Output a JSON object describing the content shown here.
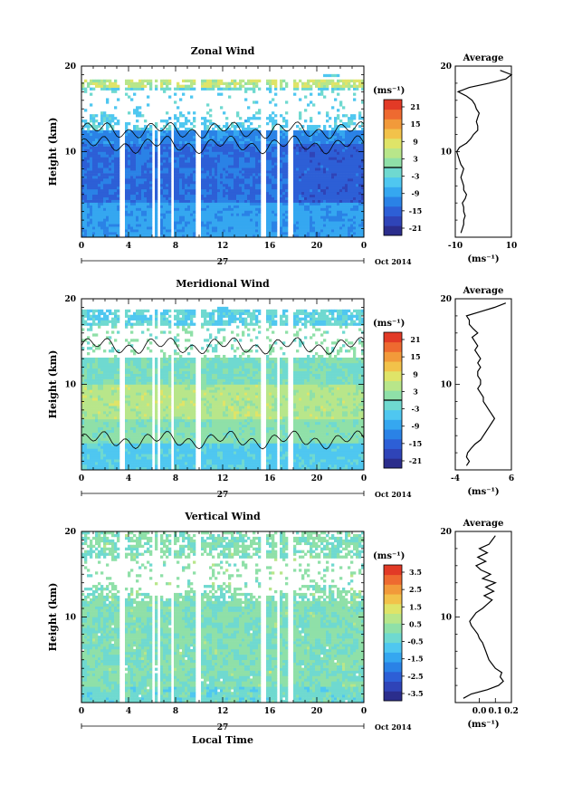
{
  "chart_data": [
    {
      "type": "heatmap",
      "title": "Zonal Wind",
      "ylabel": "Height (km)",
      "unit": "(ms⁻¹)",
      "xlim": [
        0,
        24
      ],
      "ylim": [
        0,
        20
      ],
      "xticks": [
        "0",
        "4",
        "8",
        "12",
        "16",
        "20",
        "0"
      ],
      "yticks": [
        "10",
        "20"
      ],
      "date_day": "27",
      "month_label": "Oct 2014",
      "colorbar_ticks": [
        "21",
        "15",
        "9",
        "3",
        "-3",
        "-9",
        "-15",
        "-21"
      ],
      "colorbar_range": [
        -24,
        24
      ],
      "colorbar_contour": 0,
      "profile_title": "Average",
      "profile_xlim": [
        -10,
        10
      ],
      "profile_xticks": [
        "-10",
        "10"
      ],
      "profile_yticks": [
        "10",
        "20"
      ],
      "profile_xlabel": "(ms⁻¹)",
      "profile_heights": [
        0.5,
        1,
        1.5,
        2,
        2.5,
        3,
        3.5,
        4,
        4.5,
        5,
        5.5,
        6,
        6.5,
        7,
        7.5,
        8,
        8.5,
        9,
        9.5,
        10,
        10.5,
        11,
        11.5,
        12,
        12.5,
        13,
        13.5,
        14,
        14.5,
        15,
        15.5,
        16,
        16.5,
        17,
        17.5,
        18,
        18.5,
        19,
        19.5
      ],
      "profile_values": [
        -8,
        -7.5,
        -7,
        -7,
        -6.5,
        -7,
        -7,
        -7.5,
        -6.5,
        -6,
        -7,
        -7,
        -7.5,
        -8,
        -7.5,
        -7,
        -8,
        -8.5,
        -9,
        -9.5,
        -8.5,
        -6,
        -4.5,
        -3.5,
        -2,
        -2,
        -2.5,
        -2,
        -1.5,
        -2.5,
        -3,
        -4,
        -6,
        -9,
        -5,
        2,
        8,
        10,
        6
      ]
    },
    {
      "type": "heatmap",
      "title": "Meridional Wind",
      "ylabel": "Height (km)",
      "unit": "(ms⁻¹)",
      "xlim": [
        0,
        24
      ],
      "ylim": [
        0,
        20
      ],
      "xticks": [
        "0",
        "4",
        "8",
        "12",
        "16",
        "20",
        "0"
      ],
      "yticks": [
        "10",
        "20"
      ],
      "date_day": "27",
      "month_label": "Oct 2014",
      "colorbar_ticks": [
        "21",
        "15",
        "9",
        "3",
        "-3",
        "-9",
        "-15",
        "-21"
      ],
      "colorbar_range": [
        -24,
        24
      ],
      "colorbar_contour": 0,
      "profile_title": "Average",
      "profile_xlim": [
        -4,
        6
      ],
      "profile_xticks": [
        "-4",
        "6"
      ],
      "profile_yticks": [
        "10",
        "20"
      ],
      "profile_xlabel": "(ms⁻¹)",
      "profile_heights": [
        0.5,
        1,
        1.5,
        2,
        2.5,
        3,
        3.5,
        4,
        4.5,
        5,
        5.5,
        6,
        6.5,
        7,
        7.5,
        8,
        8.5,
        9,
        9.5,
        10,
        10.5,
        11,
        11.5,
        12,
        12.5,
        13,
        13.5,
        14,
        14.5,
        15,
        15.5,
        16,
        16.5,
        17,
        17.5,
        18,
        18.5,
        19,
        19.5
      ],
      "profile_values": [
        -2,
        -1.5,
        -2,
        -1.8,
        -1.2,
        -0.5,
        0.5,
        1,
        1.5,
        2,
        2.5,
        3,
        2.5,
        2,
        1.5,
        1,
        1,
        0.5,
        0,
        0.5,
        0.5,
        0,
        0,
        0.5,
        0,
        0.5,
        0,
        -0.5,
        0,
        -0.5,
        -1,
        0,
        -0.8,
        -1.5,
        -1.5,
        -2,
        0.5,
        3,
        5
      ]
    },
    {
      "type": "heatmap",
      "title": "Vertical Wind",
      "ylabel": "Height (km)",
      "xlabel": "Local Time",
      "unit": "(ms⁻¹)",
      "xlim": [
        0,
        24
      ],
      "ylim": [
        0,
        20
      ],
      "xticks": [
        "0",
        "4",
        "8",
        "12",
        "16",
        "20",
        "0"
      ],
      "yticks": [
        "10",
        "20"
      ],
      "date_day": "27",
      "month_label": "Oct 2014",
      "colorbar_ticks": [
        "3.5",
        "2.5",
        "1.5",
        "0.5",
        "-0.5",
        "-1.5",
        "-2.5",
        "-3.5"
      ],
      "colorbar_range": [
        -4,
        4
      ],
      "profile_title": "Average",
      "profile_xlim": [
        -0.15,
        0.2
      ],
      "profile_xticks": [
        "0.0",
        "0.1",
        "0.2"
      ],
      "profile_yticks": [
        "10",
        "20"
      ],
      "profile_xlabel": "(ms⁻¹)",
      "profile_heights": [
        0.5,
        1,
        1.5,
        2,
        2.5,
        3,
        3.5,
        4,
        4.5,
        5,
        5.5,
        6,
        6.5,
        7,
        7.5,
        8,
        8.5,
        9,
        9.5,
        10,
        10.5,
        11,
        11.5,
        12,
        12.5,
        13,
        13.5,
        14,
        14.5,
        15,
        15.5,
        16,
        16.5,
        17,
        17.5,
        18,
        18.5,
        19,
        19.5
      ],
      "profile_values": [
        -0.1,
        -0.05,
        0.05,
        0.12,
        0.15,
        0.13,
        0.14,
        0.1,
        0.08,
        0.06,
        0.05,
        0.04,
        0.03,
        0.02,
        0,
        -0.01,
        -0.03,
        -0.05,
        -0.06,
        -0.04,
        -0.02,
        0.02,
        0.05,
        0.08,
        0.03,
        0.09,
        0.04,
        0.1,
        0.02,
        0.07,
        0.01,
        -0.02,
        0.04,
        -0.01,
        0.05,
        0,
        0.06,
        0.08,
        0.1
      ]
    }
  ]
}
